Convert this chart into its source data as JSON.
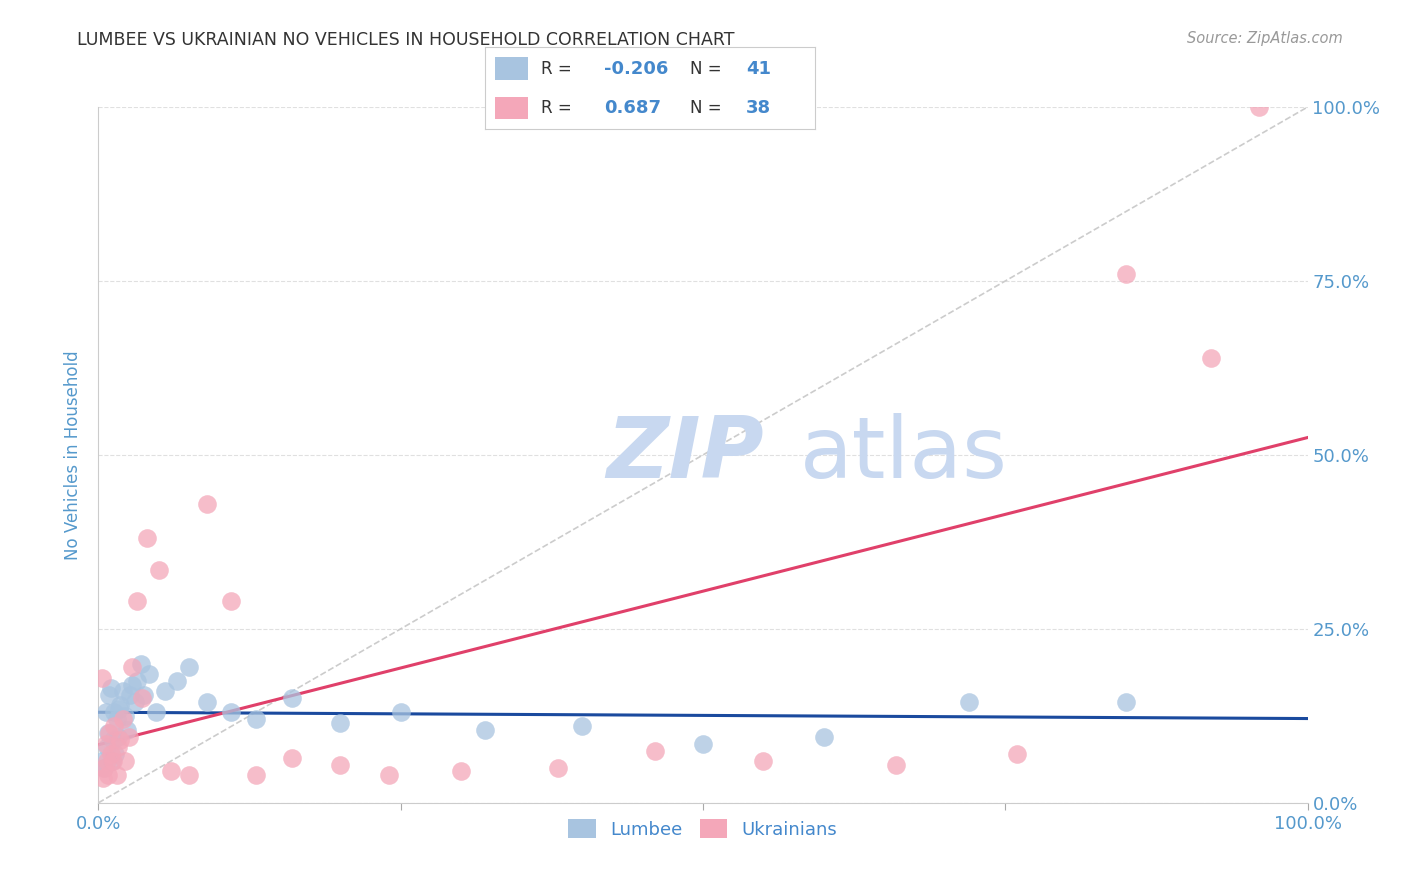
{
  "title": "LUMBEE VS UKRAINIAN NO VEHICLES IN HOUSEHOLD CORRELATION CHART",
  "source": "Source: ZipAtlas.com",
  "ylabel": "No Vehicles in Household",
  "xlim": [
    0,
    1
  ],
  "ylim": [
    0,
    1
  ],
  "y_ticks": [
    0,
    0.25,
    0.5,
    0.75,
    1.0
  ],
  "lumbee_R": -0.206,
  "lumbee_N": 41,
  "ukrainian_R": 0.687,
  "ukrainian_N": 38,
  "lumbee_color": "#a8c4e0",
  "ukrainian_color": "#f4a7b9",
  "lumbee_line_color": "#1a4a9e",
  "ukrainian_line_color": "#e0406a",
  "diagonal_color": "#cccccc",
  "title_color": "#333333",
  "source_color": "#999999",
  "tick_label_color": "#5599cc",
  "grid_color": "#e0e0e0",
  "legend_label_color": "#4488cc",
  "watermark_color": "#c8d8f0",
  "background_color": "#ffffff",
  "lumbee_x": [
    0.003,
    0.005,
    0.006,
    0.007,
    0.008,
    0.009,
    0.01,
    0.011,
    0.012,
    0.013,
    0.014,
    0.015,
    0.016,
    0.017,
    0.018,
    0.02,
    0.022,
    0.024,
    0.026,
    0.028,
    0.03,
    0.032,
    0.035,
    0.038,
    0.042,
    0.048,
    0.055,
    0.065,
    0.075,
    0.09,
    0.11,
    0.13,
    0.16,
    0.2,
    0.25,
    0.32,
    0.4,
    0.5,
    0.6,
    0.72,
    0.85
  ],
  "lumbee_y": [
    0.06,
    0.05,
    0.13,
    0.08,
    0.1,
    0.155,
    0.165,
    0.06,
    0.09,
    0.13,
    0.07,
    0.12,
    0.095,
    0.135,
    0.14,
    0.16,
    0.125,
    0.105,
    0.155,
    0.17,
    0.145,
    0.175,
    0.2,
    0.155,
    0.185,
    0.13,
    0.16,
    0.175,
    0.195,
    0.145,
    0.13,
    0.12,
    0.15,
    0.115,
    0.13,
    0.105,
    0.11,
    0.085,
    0.095,
    0.145,
    0.145
  ],
  "ukrainian_x": [
    0.003,
    0.004,
    0.005,
    0.006,
    0.007,
    0.008,
    0.009,
    0.01,
    0.012,
    0.013,
    0.015,
    0.016,
    0.018,
    0.02,
    0.022,
    0.025,
    0.028,
    0.032,
    0.036,
    0.04,
    0.05,
    0.06,
    0.075,
    0.09,
    0.11,
    0.13,
    0.16,
    0.2,
    0.24,
    0.3,
    0.38,
    0.46,
    0.55,
    0.66,
    0.76,
    0.85,
    0.92,
    0.96
  ],
  "ukrainian_y": [
    0.18,
    0.035,
    0.05,
    0.085,
    0.06,
    0.04,
    0.1,
    0.07,
    0.06,
    0.11,
    0.04,
    0.08,
    0.09,
    0.12,
    0.06,
    0.095,
    0.195,
    0.29,
    0.15,
    0.38,
    0.335,
    0.045,
    0.04,
    0.43,
    0.29,
    0.04,
    0.065,
    0.055,
    0.04,
    0.045,
    0.05,
    0.075,
    0.06,
    0.055,
    0.07,
    0.76,
    0.64,
    1.0
  ]
}
